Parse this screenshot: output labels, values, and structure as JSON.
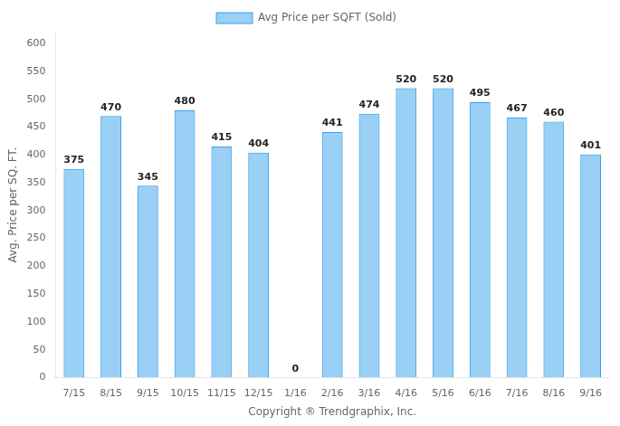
{
  "chart_data": {
    "type": "bar",
    "categories": [
      "7/15",
      "8/15",
      "9/15",
      "10/15",
      "11/15",
      "12/15",
      "1/16",
      "2/16",
      "3/16",
      "4/16",
      "5/16",
      "6/16",
      "7/16",
      "8/16",
      "9/16"
    ],
    "series": [
      {
        "name": "Avg Price per SQFT (Sold)",
        "values": [
          375,
          470,
          345,
          480,
          415,
          404,
          0,
          441,
          474,
          520,
          520,
          495,
          467,
          460,
          401
        ]
      }
    ],
    "xlabel": "Copyright ® Trendgraphix, Inc.",
    "ylabel": "Avg. Price per SQ. FT.",
    "ylim": [
      0,
      620
    ],
    "yticks": [
      0,
      50,
      100,
      150,
      200,
      250,
      300,
      350,
      400,
      450,
      500,
      550,
      600
    ],
    "grid": false,
    "legend": "top",
    "data_labels": true
  }
}
